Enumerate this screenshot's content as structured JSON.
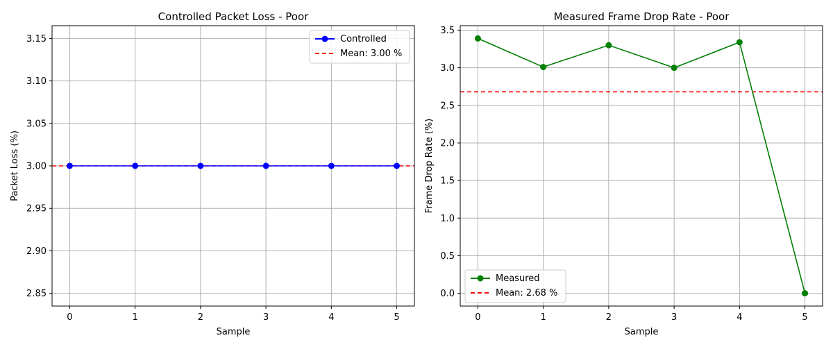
{
  "chart_data": [
    {
      "type": "line",
      "title": "Controlled Packet Loss - Poor",
      "xlabel": "Sample",
      "ylabel": "Packet Loss (%)",
      "x": [
        0,
        1,
        2,
        3,
        4,
        5
      ],
      "xticks": [
        "0",
        "1",
        "2",
        "3",
        "4",
        "5"
      ],
      "yticks": [
        "2.85",
        "2.90",
        "2.95",
        "3.00",
        "3.05",
        "3.10",
        "3.15"
      ],
      "ytick_values": [
        2.85,
        2.9,
        2.95,
        3.0,
        3.05,
        3.1,
        3.15
      ],
      "xlim": [
        -0.27,
        5.27
      ],
      "ylim": [
        2.835,
        3.165
      ],
      "grid": true,
      "series": [
        {
          "name": "Controlled",
          "values": [
            3.0,
            3.0,
            3.0,
            3.0,
            3.0,
            3.0
          ],
          "color": "#0000ff",
          "style": "line-marker"
        }
      ],
      "reference_lines": [
        {
          "name": "Mean: 3.00 %",
          "value": 3.0,
          "color": "#ff0000",
          "style": "dashed"
        }
      ],
      "legend_position": "upper right"
    },
    {
      "type": "line",
      "title": "Measured Frame Drop Rate - Poor",
      "xlabel": "Sample",
      "ylabel": "Frame Drop Rate (%)",
      "x": [
        0,
        1,
        2,
        3,
        4,
        5
      ],
      "xticks": [
        "0",
        "1",
        "2",
        "3",
        "4",
        "5"
      ],
      "yticks": [
        "0.0",
        "0.5",
        "1.0",
        "1.5",
        "2.0",
        "2.5",
        "3.0",
        "3.5"
      ],
      "ytick_values": [
        0.0,
        0.5,
        1.0,
        1.5,
        2.0,
        2.5,
        3.0,
        3.5
      ],
      "xlim": [
        -0.27,
        5.27
      ],
      "ylim": [
        -0.17,
        3.56
      ],
      "grid": true,
      "series": [
        {
          "name": "Measured",
          "values": [
            3.39,
            3.01,
            3.3,
            3.0,
            3.34,
            0.0
          ],
          "color": "#008000",
          "style": "line-marker"
        }
      ],
      "reference_lines": [
        {
          "name": "Mean: 2.68 %",
          "value": 2.68,
          "color": "#ff0000",
          "style": "dashed"
        }
      ],
      "legend_position": "lower left"
    }
  ]
}
